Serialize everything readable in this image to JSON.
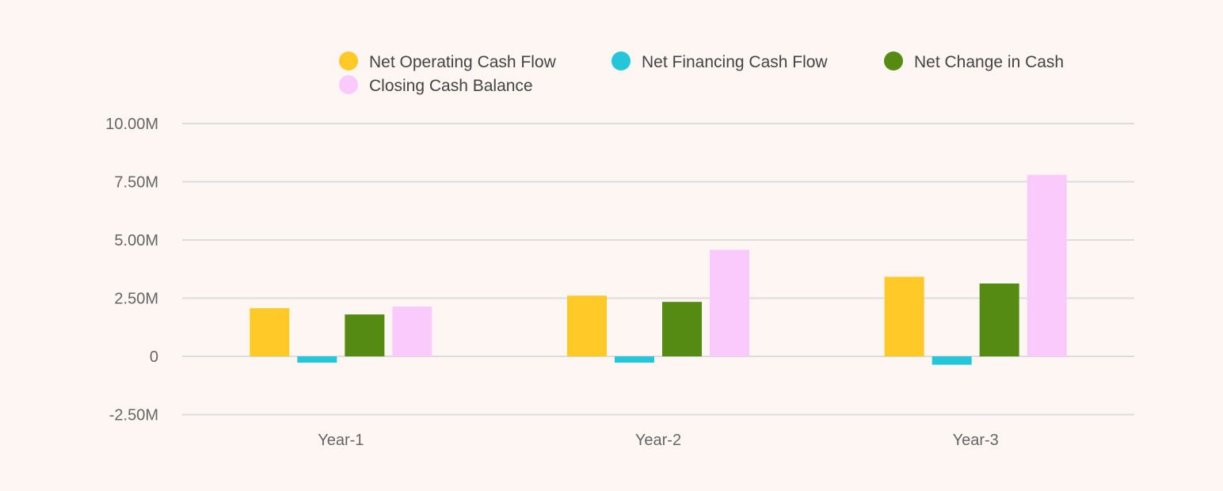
{
  "chart_data": {
    "type": "bar",
    "title": "",
    "xlabel": "",
    "ylabel": "",
    "categories": [
      "Year-1",
      "Year-2",
      "Year-3"
    ],
    "ylim": [
      -2.5,
      10
    ],
    "yticks": [
      -2.5,
      0,
      2.5,
      5,
      7.5,
      10
    ],
    "ytick_labels": [
      "-2.50M",
      "0",
      "2.50M",
      "5.00M",
      "7.50M",
      "10.00M"
    ],
    "grid": true,
    "legend_position": "top",
    "series": [
      {
        "name": "Net Operating Cash Flow",
        "color": "#ffca28",
        "values": [
          2.07,
          2.61,
          3.42
        ]
      },
      {
        "name": "Net Financing Cash Flow",
        "color": "#26c6da",
        "values": [
          -0.27,
          -0.27,
          -0.36
        ]
      },
      {
        "name": "Net Change in Cash",
        "color": "#558b13",
        "values": [
          1.8,
          2.34,
          3.13
        ]
      },
      {
        "name": "Closing Cash Balance",
        "color": "#fbcafd",
        "values": [
          2.14,
          4.58,
          7.8
        ]
      }
    ]
  }
}
